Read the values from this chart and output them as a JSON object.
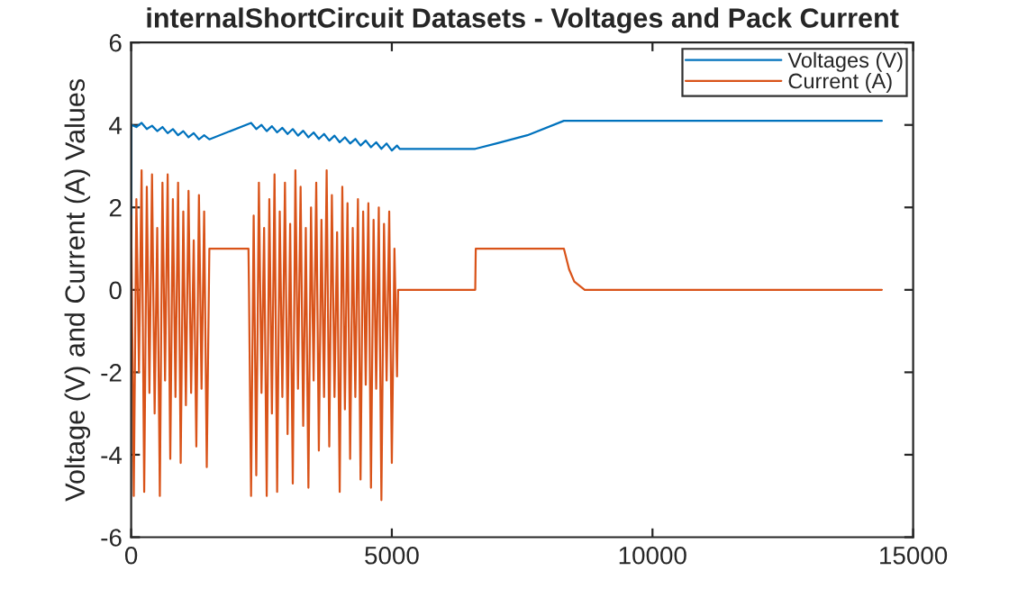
{
  "chart_data": {
    "type": "line",
    "title": "internalShortCircuit Datasets - Voltages and Pack Current",
    "ylabel": "Voltage (V) and Current (A) Values",
    "xlim": [
      0,
      15000
    ],
    "xticks": [
      0,
      5000,
      10000,
      15000
    ],
    "ylim": [
      -6,
      6
    ],
    "yticks": [
      -6,
      -4,
      -2,
      0,
      2,
      4,
      6
    ],
    "grid": false,
    "legend": "top right",
    "series": [
      {
        "name": "Voltages (V)",
        "color": "#0072bd",
        "x": [
          0,
          5,
          100,
          200,
          300,
          400,
          500,
          600,
          700,
          800,
          900,
          1000,
          1100,
          1200,
          1300,
          1400,
          1500,
          2300,
          2400,
          2500,
          2600,
          2700,
          2800,
          2900,
          3000,
          3100,
          3200,
          3300,
          3400,
          3500,
          3600,
          3700,
          3800,
          3900,
          4000,
          4100,
          4200,
          4300,
          4400,
          4500,
          4600,
          4700,
          4800,
          4900,
          5000,
          5100,
          5150,
          6600,
          7000,
          7600,
          8300,
          14400
        ],
        "values": [
          0,
          4.0,
          3.95,
          4.05,
          3.9,
          3.98,
          3.85,
          3.95,
          3.8,
          3.9,
          3.75,
          3.85,
          3.7,
          3.8,
          3.65,
          3.75,
          3.65,
          4.05,
          3.9,
          4.0,
          3.85,
          3.97,
          3.82,
          3.93,
          3.78,
          3.9,
          3.74,
          3.86,
          3.7,
          3.82,
          3.66,
          3.78,
          3.62,
          3.74,
          3.58,
          3.7,
          3.55,
          3.66,
          3.5,
          3.62,
          3.46,
          3.58,
          3.42,
          3.55,
          3.38,
          3.5,
          3.42,
          3.42,
          3.55,
          3.75,
          4.1,
          4.1
        ]
      },
      {
        "name": "Current (A)",
        "color": "#d95319",
        "x": [
          0,
          50,
          100,
          150,
          200,
          250,
          300,
          350,
          400,
          450,
          500,
          550,
          600,
          650,
          700,
          750,
          800,
          850,
          900,
          950,
          1000,
          1050,
          1100,
          1150,
          1200,
          1250,
          1300,
          1350,
          1400,
          1450,
          1500,
          2250,
          2260,
          2300,
          2350,
          2400,
          2450,
          2500,
          2550,
          2600,
          2650,
          2700,
          2750,
          2800,
          2850,
          2900,
          2950,
          3000,
          3050,
          3100,
          3150,
          3200,
          3250,
          3300,
          3350,
          3400,
          3450,
          3500,
          3550,
          3600,
          3650,
          3700,
          3750,
          3800,
          3850,
          3900,
          3950,
          4000,
          4050,
          4100,
          4150,
          4200,
          4250,
          4300,
          4350,
          4400,
          4450,
          4500,
          4550,
          4600,
          4650,
          4700,
          4750,
          4800,
          4850,
          4900,
          4950,
          5000,
          5050,
          5100,
          5120,
          6600,
          6610,
          8300,
          8400,
          8500,
          8700,
          14400
        ],
        "values": [
          1.8,
          -5,
          2.2,
          -2,
          2.9,
          -4.9,
          2.5,
          -2.5,
          2.8,
          -3,
          1.5,
          -5,
          2.6,
          -2.2,
          2.8,
          -4.1,
          2.2,
          -2.6,
          2.6,
          -4.2,
          1.9,
          -2.8,
          2.4,
          -2.5,
          1.2,
          -3.8,
          2.3,
          -2.4,
          1.9,
          -4.3,
          1.0,
          1.0,
          0,
          -5,
          1.8,
          -4.5,
          2.6,
          -2.5,
          1.5,
          -5,
          2.2,
          -3,
          2.8,
          -4.9,
          1.9,
          -2.6,
          2.6,
          -3.5,
          1.6,
          -4.7,
          2.9,
          -2.4,
          2.5,
          -3.3,
          1.5,
          -4.8,
          2.0,
          -2.2,
          2.6,
          -3.9,
          1.7,
          -2.6,
          2.9,
          -3.8,
          2.3,
          -2.6,
          1.4,
          -4.9,
          2.5,
          -2.9,
          2.1,
          -4.1,
          1.5,
          -2.6,
          2.2,
          -4.6,
          1.9,
          -2.3,
          2.1,
          -4.8,
          1.7,
          -2.4,
          2.0,
          -5.1,
          1.6,
          -2.2,
          1.9,
          -4.2,
          1.0,
          -2.1,
          0,
          0,
          1.0,
          1.0,
          0.5,
          0.2,
          0,
          0
        ]
      }
    ]
  }
}
